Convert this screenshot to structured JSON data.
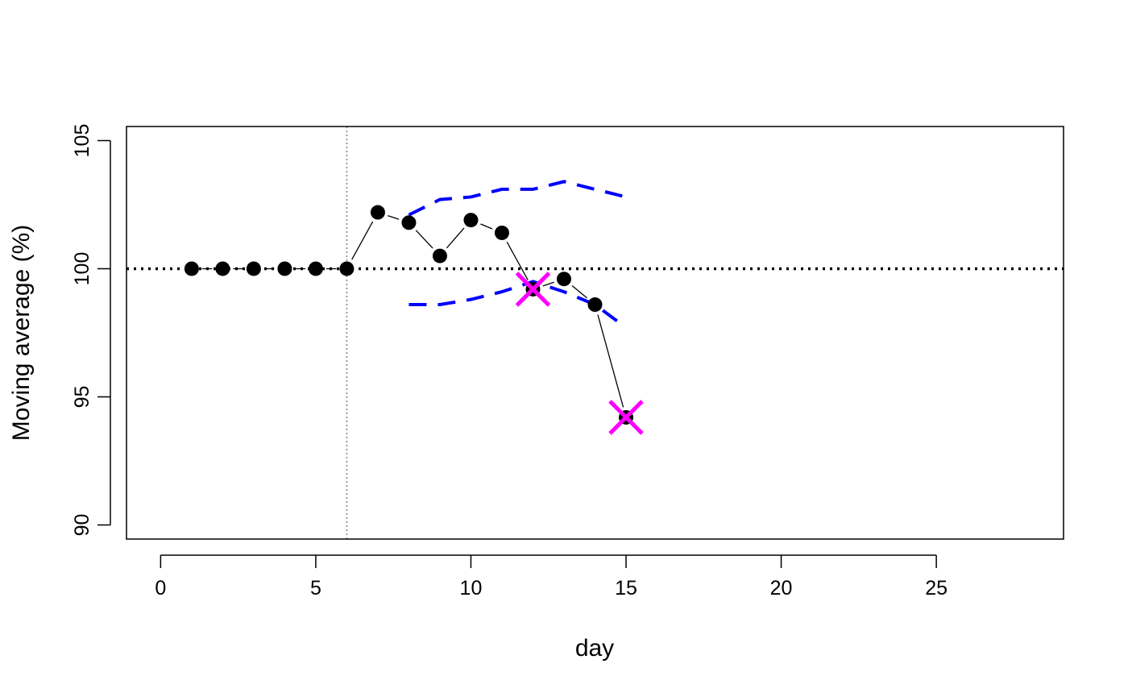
{
  "chart_data": {
    "type": "line",
    "title": "",
    "xlabel": "day",
    "ylabel": "Moving average (%)",
    "xlim": [
      -1.1,
      29.1
    ],
    "ylim": [
      89.45,
      105.55
    ],
    "xticks": [
      0,
      5,
      10,
      15,
      20,
      25
    ],
    "yticks": [
      90,
      95,
      100,
      105
    ],
    "grid": false,
    "legend": "none",
    "reference_line": {
      "y": 100,
      "style": "dotted",
      "color": "#000000"
    },
    "vertical_line": {
      "x": 6,
      "style": "dotted",
      "color": "#808080"
    },
    "series": [
      {
        "kind": "points-connected",
        "color": "#000000",
        "x": [
          1,
          2,
          3,
          4,
          5,
          6,
          7,
          8,
          9,
          10,
          11,
          12,
          13,
          14,
          15
        ],
        "y": [
          100,
          100,
          100,
          100,
          100,
          100,
          102.2,
          101.8,
          100.5,
          101.9,
          101.4,
          99.2,
          99.6,
          98.6,
          94.2
        ]
      },
      {
        "kind": "dashed-line",
        "color": "#0000ff",
        "x": [
          8,
          9,
          10,
          11,
          12,
          13,
          14,
          15
        ],
        "y": [
          102.1,
          102.7,
          102.8,
          103.1,
          103.1,
          103.4,
          103.1,
          102.8
        ]
      },
      {
        "kind": "dashed-line",
        "color": "#0000ff",
        "x": [
          8,
          9,
          10,
          11,
          12,
          13,
          14,
          15
        ],
        "y": [
          98.6,
          98.6,
          98.8,
          99.1,
          99.5,
          99.1,
          98.6,
          97.7
        ]
      },
      {
        "kind": "x-markers",
        "color": "#ff00ff",
        "x": [
          12,
          15
        ],
        "y": [
          99.2,
          94.2
        ]
      }
    ]
  }
}
